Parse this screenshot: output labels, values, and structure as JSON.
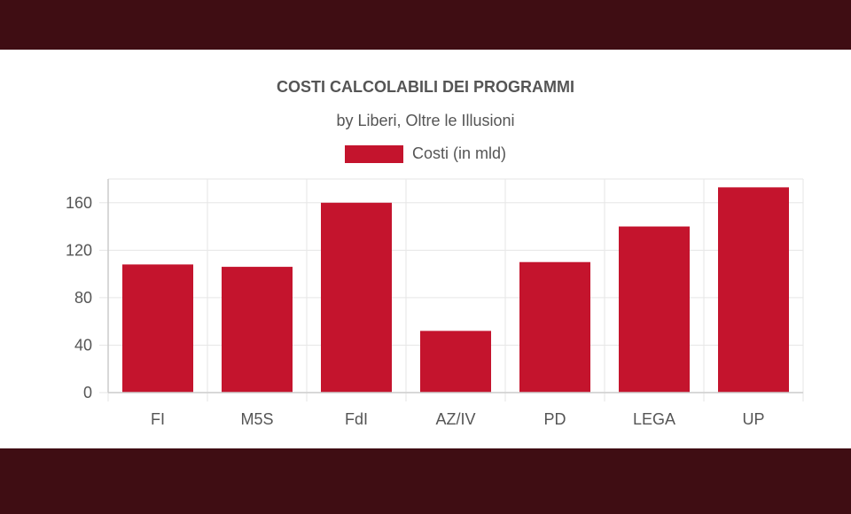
{
  "chart_data": {
    "type": "bar",
    "title": "COSTI CALCOLABILI DEI PROGRAMMI",
    "subtitle": "by Liberi, Oltre le Illusioni",
    "categories": [
      "FI",
      "M5S",
      "FdI",
      "AZ/IV",
      "PD",
      "LEGA",
      "UP"
    ],
    "series": [
      {
        "name": "Costi (in mld)",
        "values": [
          108,
          106,
          160,
          52,
          110,
          140,
          173
        ]
      }
    ],
    "yticks": [
      "0",
      "40",
      "80",
      "120",
      "160"
    ],
    "ylim": [
      0,
      180
    ],
    "grid": true,
    "legend_position": "top"
  },
  "colors": {
    "bar": "#c4142d",
    "band": "#3f0d13",
    "grid": "#e6e6e6",
    "text": "#555555"
  }
}
